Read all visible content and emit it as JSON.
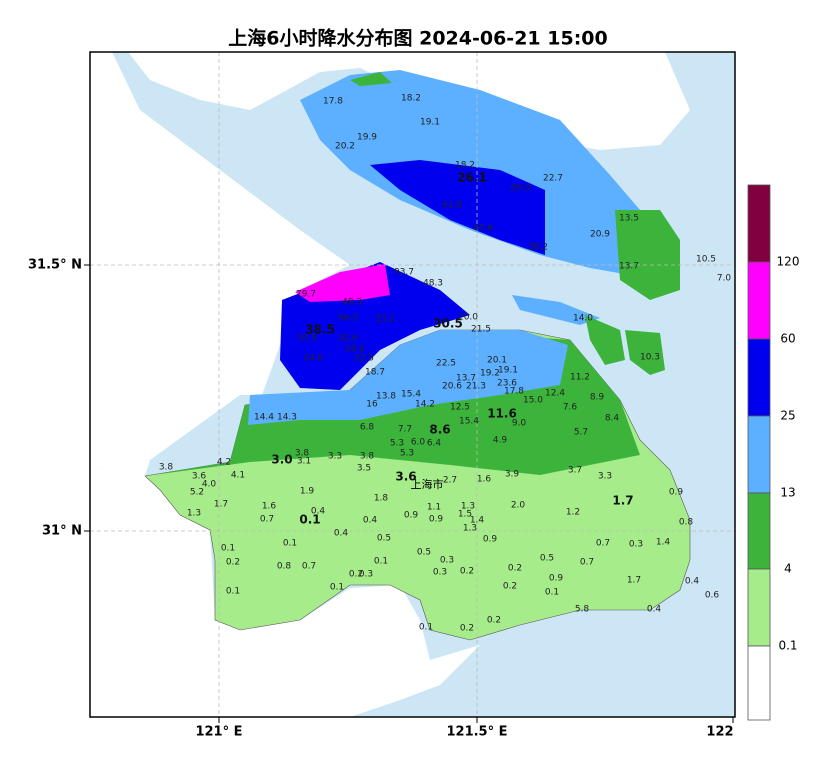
{
  "title": "上海6小时降水分布图 2024-06-21 15:00",
  "lat_labels": [
    "31.5° N",
    "31° N"
  ],
  "lon_labels": [
    "121° E",
    "121.5° E",
    "122"
  ],
  "colorbar_labels": [
    "120",
    "60",
    "25",
    "13",
    "4",
    "0.1"
  ],
  "city_label": "上海市",
  "stations": [
    "17.8",
    "18.2",
    "19.1",
    "19.9",
    "20.2",
    "18.2",
    "26.1",
    "22.7",
    "29.3",
    "41.8",
    "47.6",
    "38.2",
    "13.5",
    "20.9",
    "13.7",
    "10.5",
    "7.0",
    "79.7",
    "48.3",
    "93.7",
    "48.3",
    "14.0",
    "10.3",
    "38.5",
    "30.5",
    "20.0",
    "21.5",
    "56.2",
    "33.2",
    "32.6",
    "30.5",
    "29.0",
    "24.6",
    "22.5",
    "22.5",
    "20.1",
    "19.1",
    "19.2",
    "13.7",
    "18.7",
    "20.6",
    "21.3",
    "23.6",
    "17.8",
    "11.2",
    "12.4",
    "15.0",
    "8.9",
    "7.6",
    "8.4",
    "13.8",
    "15.4",
    "16",
    "14.2",
    "12.5",
    "11.6",
    "14.4",
    "14.3",
    "15.4",
    "9.0",
    "5.7",
    "6.8",
    "7.7",
    "8.6",
    "5.3",
    "6.0",
    "6.4",
    "4.9",
    "5.3",
    "3.0",
    "3.8",
    "3.1",
    "3.3",
    "3.8",
    "3.5",
    "4.2",
    "3.8",
    "3.6",
    "4.1",
    "4.0",
    "5.2",
    "3.6",
    "2.7",
    "1.6",
    "3.9",
    "3.7",
    "3.3",
    "1.9",
    "1.7",
    "1.8",
    "1.7",
    "0.9",
    "1.6",
    "0.4",
    "1.1",
    "1.3",
    "2.0",
    "1.2",
    "0.7",
    "0.1",
    "0.9",
    "0.4",
    "0.9",
    "1.5",
    "1.4",
    "1.3",
    "0.8",
    "0.4",
    "1.3",
    "0.9",
    "0.7",
    "0.3",
    "1.4",
    "0.1",
    "0.5",
    "0.1",
    "0.5",
    "0.2",
    "0.1",
    "0.3",
    "0.2",
    "0.2",
    "0.5",
    "0.7",
    "0.8",
    "0.7",
    "0.3",
    "0.2",
    "0.3",
    "0.9",
    "0.2",
    "0.1",
    "1.7",
    "0.4",
    "0.6",
    "0.1",
    "0.1",
    "5.8",
    "0.4",
    "0.2",
    "0.1",
    "0.2"
  ]
}
